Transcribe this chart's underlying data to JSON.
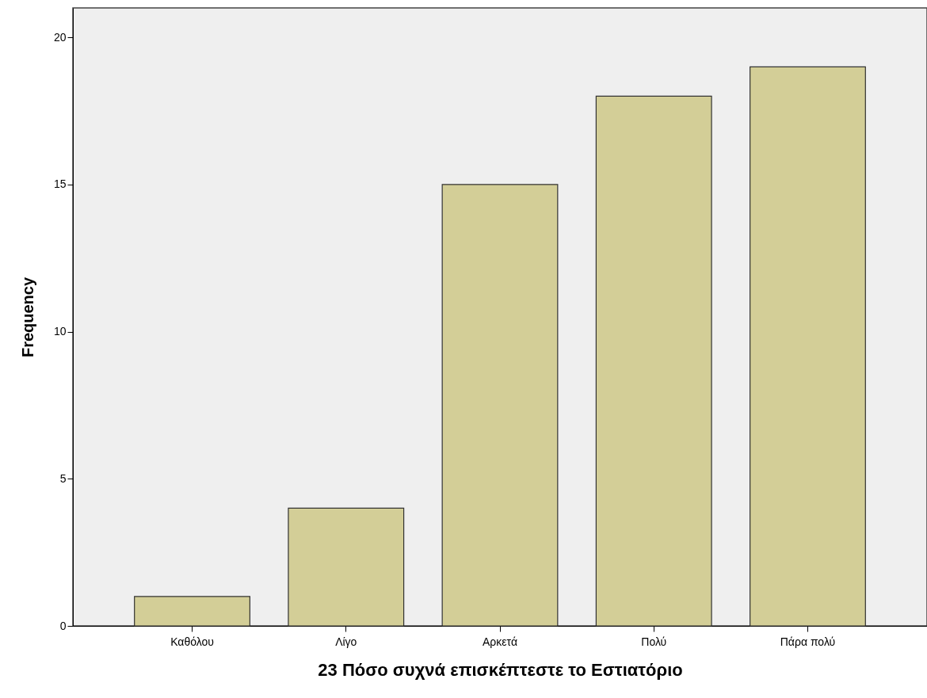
{
  "chart_data": {
    "type": "bar",
    "xlabel": "23 Πόσο συχνά επισκέπτεστε το Εστιατόριο",
    "ylabel": "Frequency",
    "categories": [
      "Καθόλου",
      "Λίγο",
      "Αρκετά",
      "Πολύ",
      "Πάρα πολύ"
    ],
    "values": [
      1,
      4,
      15,
      18,
      19
    ],
    "color": "#d3ce97",
    "ylim": [
      0,
      21
    ],
    "yticks": [
      0,
      5,
      10,
      15,
      20
    ],
    "grid": false
  }
}
